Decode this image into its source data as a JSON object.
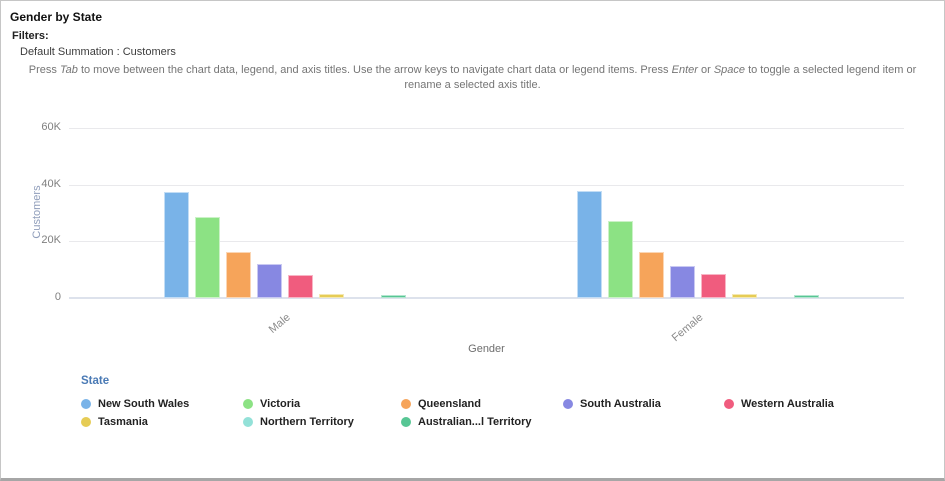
{
  "header": {
    "title": "Gender by State",
    "filters_label": "Filters:",
    "filter_value": "Default Summation : Customers",
    "instruction_segments": [
      {
        "t": "Press "
      },
      {
        "t": "Tab",
        "i": true
      },
      {
        "t": " to move between the chart data, legend, and axis titles. Use the arrow keys to navigate chart data or legend items. Press "
      },
      {
        "t": "Enter",
        "i": true
      },
      {
        "t": " or "
      },
      {
        "t": "Space",
        "i": true
      },
      {
        "t": " to toggle a selected legend item or rename a selected axis title."
      }
    ]
  },
  "chart_data": {
    "type": "bar",
    "title": "Gender by State",
    "xlabel": "Gender",
    "ylabel": "Customers",
    "categories": [
      "Male",
      "Female"
    ],
    "series": [
      {
        "name": "New South Wales",
        "legend_label": "New South Wales",
        "color": "#79b3e8",
        "values": [
          37400,
          37900
        ]
      },
      {
        "name": "Victoria",
        "legend_label": "Victoria",
        "color": "#8ce284",
        "values": [
          28500,
          27200
        ]
      },
      {
        "name": "Queensland",
        "legend_label": "Queensland",
        "color": "#f6a45a",
        "values": [
          16100,
          16400
        ]
      },
      {
        "name": "South Australia",
        "legend_label": "South Australia",
        "color": "#8788e2",
        "values": [
          12000,
          11200
        ]
      },
      {
        "name": "Western Australia",
        "legend_label": "Western Australia",
        "color": "#f05c7e",
        "values": [
          8200,
          8400
        ]
      },
      {
        "name": "Tasmania",
        "legend_label": "Tasmania",
        "color": "#e6cc55",
        "values": [
          1300,
          1300
        ]
      },
      {
        "name": "Northern Territory",
        "legend_label": "Northern Territory",
        "color": "#93e1d8",
        "values": [
          100,
          100
        ]
      },
      {
        "name": "Australian Capital Territory",
        "legend_label": "Australian...l Territory",
        "color": "#57c694",
        "values": [
          900,
          900
        ]
      }
    ],
    "ylim": [
      0,
      60000
    ],
    "yticks": [
      {
        "label": "0",
        "value": 0
      },
      {
        "label": "20K",
        "value": 20000
      },
      {
        "label": "40K",
        "value": 40000
      },
      {
        "label": "60K",
        "value": 60000
      }
    ],
    "grid": true,
    "legend_position": "bottom",
    "legend_title": "State"
  }
}
